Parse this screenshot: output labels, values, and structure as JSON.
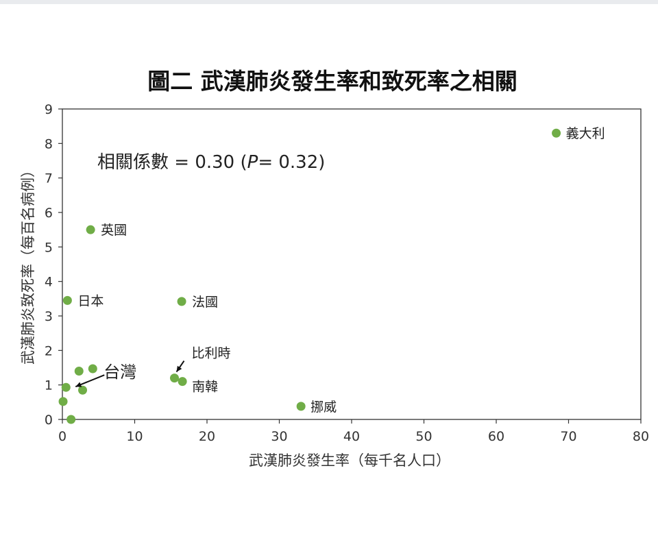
{
  "chart_data": {
    "type": "scatter",
    "title": "圖二  武漢肺炎發生率和致死率之相關",
    "xlabel": "武漢肺炎發生率（每千名人口）",
    "ylabel": "武漢肺炎致死率（每百名病例）",
    "xlim": [
      0,
      80
    ],
    "ylim": [
      0,
      9
    ],
    "xticks": [
      0,
      10,
      20,
      30,
      40,
      50,
      60,
      70,
      80
    ],
    "yticks": [
      0,
      1,
      2,
      3,
      4,
      5,
      6,
      7,
      8,
      9
    ],
    "grid": false,
    "marker_color": "#70ad47",
    "annotation": "相關係數 = 0.30 (P= 0.32)",
    "annotation_parts": [
      "相關係數 = 0.30 (",
      "P",
      "= 0.32)"
    ],
    "points": [
      {
        "x": 68.3,
        "y": 8.3,
        "label": "義大利"
      },
      {
        "x": 3.9,
        "y": 5.5,
        "label": "英國"
      },
      {
        "x": 0.7,
        "y": 3.45,
        "label": "日本"
      },
      {
        "x": 16.5,
        "y": 3.42,
        "label": "法國"
      },
      {
        "x": 15.5,
        "y": 1.2,
        "label": "比利時"
      },
      {
        "x": 16.6,
        "y": 1.1,
        "label": "南韓"
      },
      {
        "x": 33.0,
        "y": 0.38,
        "label": "挪威"
      },
      {
        "x": 0.5,
        "y": 0.93,
        "label": "台灣"
      },
      {
        "x": 2.3,
        "y": 1.4,
        "label": ""
      },
      {
        "x": 4.2,
        "y": 1.47,
        "label": ""
      },
      {
        "x": 2.8,
        "y": 0.85,
        "label": ""
      },
      {
        "x": 0.1,
        "y": 0.52,
        "label": ""
      },
      {
        "x": 1.2,
        "y": 0.0,
        "label": ""
      }
    ]
  }
}
